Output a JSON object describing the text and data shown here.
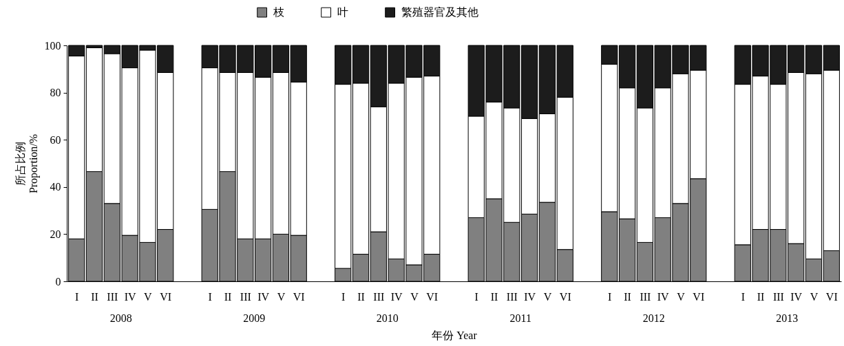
{
  "chart_data": {
    "type": "bar",
    "stacked": true,
    "legend": "top",
    "grid": false,
    "xlabel": "年份 Year",
    "ylabel": "所占比例 Proportion/%",
    "categories": [
      "I",
      "II",
      "III",
      "IV",
      "V",
      "VI",
      "I",
      "II",
      "III",
      "IV",
      "V",
      "VI",
      "I",
      "II",
      "III",
      "IV",
      "V",
      "VI",
      "I",
      "II",
      "III",
      "IV",
      "V",
      "VI",
      "I",
      "II",
      "III",
      "IV",
      "V",
      "VI",
      "I",
      "II",
      "III",
      "IV",
      "V",
      "VI"
    ],
    "annotations": [
      "2008",
      "2009",
      "2010",
      "2011",
      "2012",
      "2013"
    ],
    "ylim": [
      0,
      100
    ],
    "yticks": [
      0,
      20,
      40,
      60,
      80,
      100
    ],
    "series": [
      {
        "name": "枝",
        "color": "#808080",
        "values": [
          18,
          46.5,
          33,
          19.5,
          16.5,
          22,
          30.5,
          46.5,
          18,
          18,
          20,
          19.5,
          5.5,
          11.5,
          21,
          9.5,
          7,
          11.5,
          27,
          35,
          25,
          28.5,
          33.5,
          13.5,
          29.5,
          26.5,
          16.5,
          27,
          33,
          43.5,
          15.5,
          22,
          22,
          16,
          9.5,
          13
        ]
      },
      {
        "name": "叶",
        "color": "#ffffff",
        "values": [
          77.5,
          52.5,
          63.5,
          71,
          81.5,
          66.5,
          60,
          42,
          70.5,
          68.5,
          68.5,
          65,
          78,
          72.5,
          53,
          74.5,
          79.5,
          75.5,
          43,
          41,
          48.5,
          40.5,
          37.5,
          64.5,
          62.5,
          55.5,
          57,
          55,
          55,
          46,
          68,
          65,
          61.5,
          72.5,
          78.5,
          76.5
        ]
      },
      {
        "name": "繁殖器官及其他",
        "color": "#1c1c1c",
        "values": [
          4.5,
          1,
          3.5,
          9.5,
          2,
          11.5,
          9.5,
          11.5,
          11.5,
          13.5,
          11.5,
          15.5,
          16.5,
          16,
          26,
          16,
          13.5,
          13,
          30,
          24,
          26.5,
          31,
          29,
          22,
          8,
          18,
          26.5,
          18,
          12,
          10.5,
          16.5,
          13,
          16.5,
          11.5,
          12,
          10.5
        ]
      }
    ]
  }
}
